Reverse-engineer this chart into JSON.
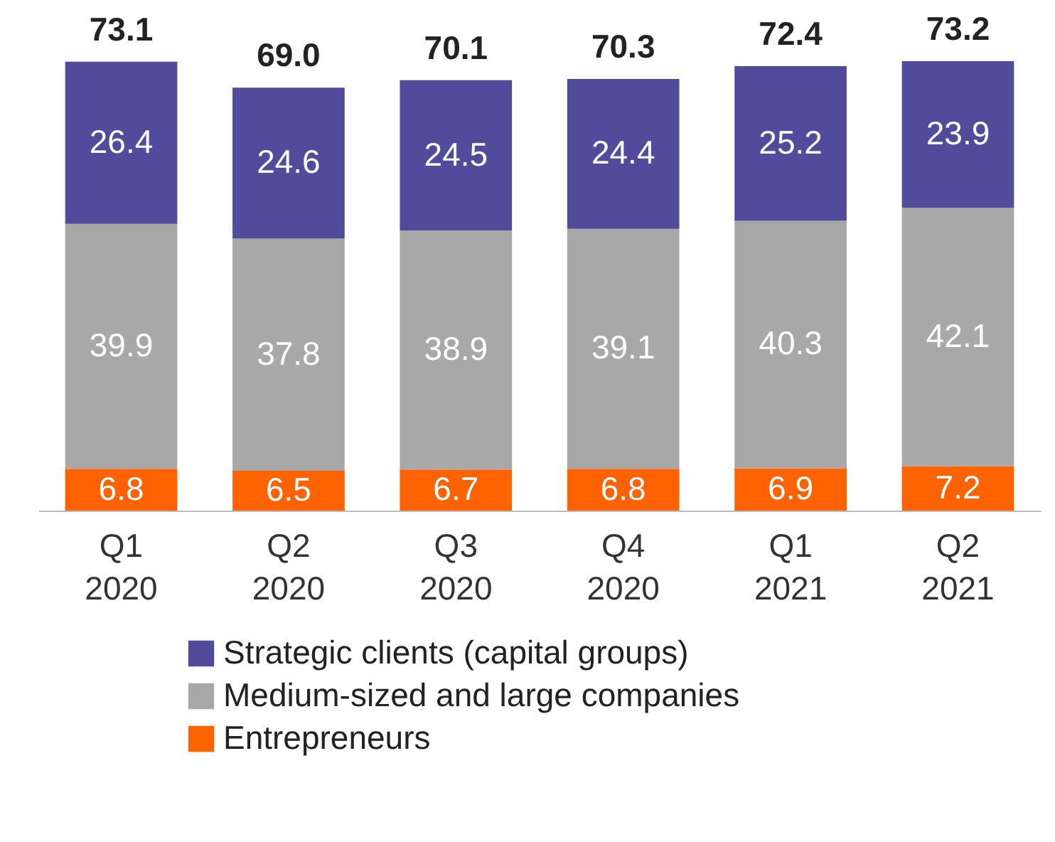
{
  "chart_data": {
    "type": "bar",
    "stacked": true,
    "data_labels": true,
    "legend": "bottom",
    "grid": false,
    "categories": [
      "Q1 2020",
      "Q2 2020",
      "Q3 2020",
      "Q4 2020",
      "Q1 2021",
      "Q2 2021"
    ],
    "series": [
      {
        "name": "Entrepreneurs",
        "color": "#ff6200",
        "values": [
          6.8,
          6.5,
          6.7,
          6.8,
          6.9,
          7.2
        ]
      },
      {
        "name": "Medium-sized and large companies",
        "color": "#a8a8a8",
        "values": [
          39.9,
          37.8,
          38.9,
          39.1,
          40.3,
          42.1
        ]
      },
      {
        "name": "Strategic clients (capital groups)",
        "color": "#524b9c",
        "values": [
          26.4,
          24.6,
          24.5,
          24.4,
          25.2,
          23.9
        ]
      }
    ],
    "totals": [
      "73.1",
      "69.0",
      "70.1",
      "70.3",
      "72.4",
      "73.2"
    ]
  }
}
